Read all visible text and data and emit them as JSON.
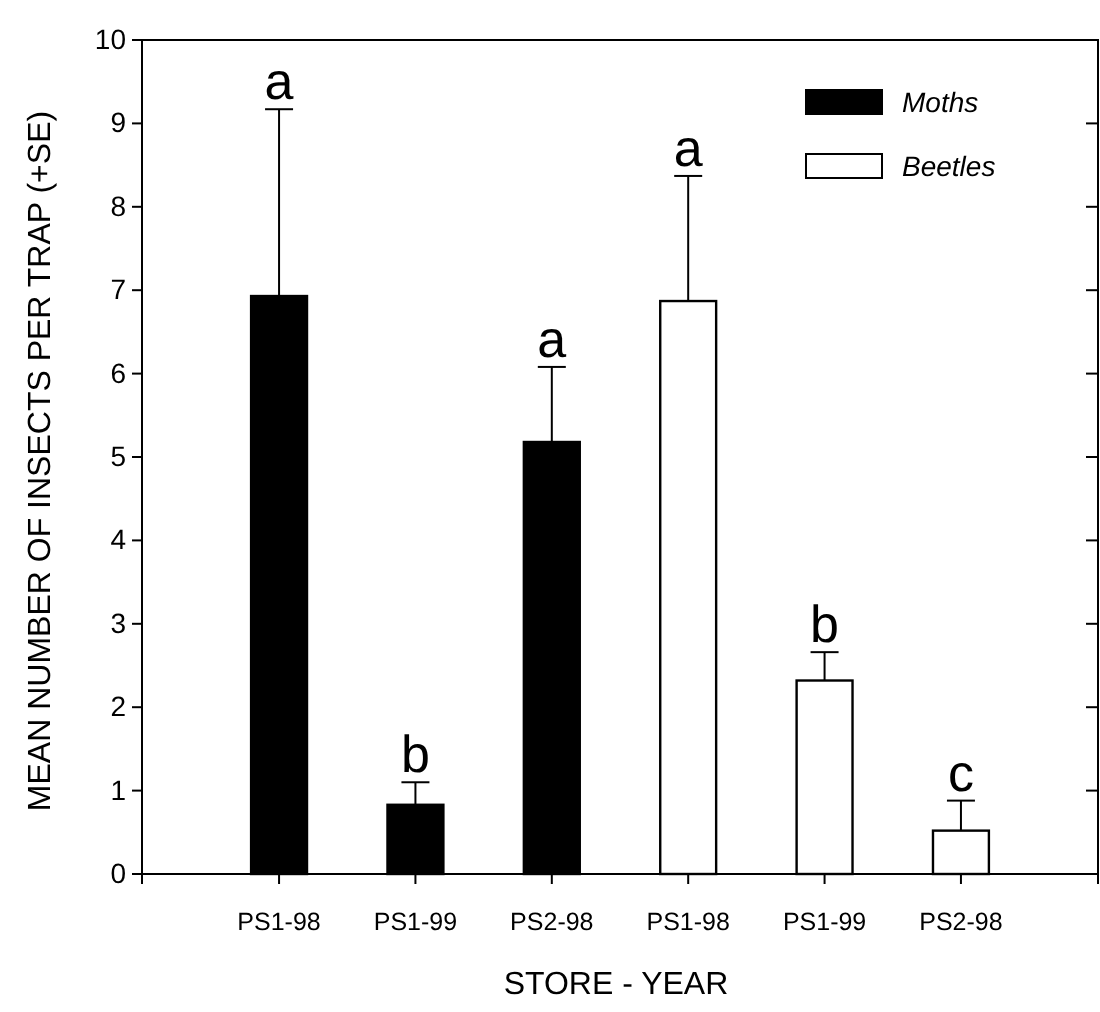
{
  "chart_data": {
    "type": "bar",
    "xlabel": "STORE - YEAR",
    "ylabel": "MEAN NUMBER OF INSECTS PER TRAP (+SE)",
    "categories": [
      "PS1-98",
      "PS1-99",
      "PS2-98",
      "PS1-98",
      "PS1-99",
      "PS2-98"
    ],
    "series": [
      {
        "name": "Moths",
        "color": "#000000",
        "values": [
          6.93,
          0.83,
          5.18,
          null,
          null,
          null
        ],
        "errors": [
          [
            6.93,
            9.17
          ],
          [
            0.83,
            1.1
          ],
          [
            5.18,
            6.08
          ],
          null,
          null,
          null
        ]
      },
      {
        "name": "Beetles",
        "color": "#ffffff",
        "values": [
          null,
          null,
          null,
          6.87,
          2.32,
          0.52
        ],
        "errors": [
          null,
          null,
          null,
          [
            6.87,
            8.37
          ],
          [
            2.32,
            2.66
          ],
          [
            0.52,
            0.88
          ]
        ]
      }
    ],
    "ylim": [
      0,
      10
    ],
    "yticks": [
      0,
      1,
      2,
      3,
      4,
      5,
      6,
      7,
      8,
      9,
      10
    ],
    "legend": "top right",
    "grid": false,
    "annotations": [
      "a",
      "b",
      "a",
      "a",
      "b",
      "c"
    ]
  }
}
